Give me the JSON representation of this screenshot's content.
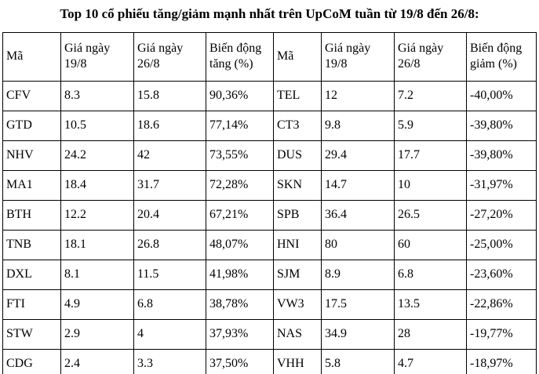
{
  "page": {
    "title": "Top 10 cổ phiếu tăng/giảm mạnh nhất trên UpCoM tuần từ 19/8 đến 26/8:"
  },
  "table": {
    "headers": [
      "Mã",
      "Giá ngày 19/8",
      "Giá ngày 26/8",
      "Biến động tăng (%)",
      "Mã",
      "Giá ngày 19/8",
      "Giá ngày 26/8",
      "Biến động giảm (%)"
    ],
    "gainers": [
      {
        "code": "CFV",
        "price_19_8": "8.3",
        "price_26_8": "15.8",
        "change": "90,36%"
      },
      {
        "code": "GTD",
        "price_19_8": "10.5",
        "price_26_8": "18.6",
        "change": "77,14%"
      },
      {
        "code": "NHV",
        "price_19_8": "24.2",
        "price_26_8": "42",
        "change": "73,55%"
      },
      {
        "code": "MA1",
        "price_19_8": "18.4",
        "price_26_8": "31.7",
        "change": "72,28%"
      },
      {
        "code": "BTH",
        "price_19_8": "12.2",
        "price_26_8": "20.4",
        "change": "67,21%"
      },
      {
        "code": "TNB",
        "price_19_8": "18.1",
        "price_26_8": "26.8",
        "change": "48,07%"
      },
      {
        "code": "DXL",
        "price_19_8": "8.1",
        "price_26_8": "11.5",
        "change": "41,98%"
      },
      {
        "code": "FTI",
        "price_19_8": "4.9",
        "price_26_8": "6.8",
        "change": "38,78%"
      },
      {
        "code": "STW",
        "price_19_8": "2.9",
        "price_26_8": "4",
        "change": "37,93%"
      },
      {
        "code": "CDG",
        "price_19_8": "2.4",
        "price_26_8": "3.3",
        "change": "37,50%"
      }
    ],
    "losers": [
      {
        "code": "TEL",
        "price_19_8": "12",
        "price_26_8": "7.2",
        "change": "-40,00%"
      },
      {
        "code": "CT3",
        "price_19_8": "9.8",
        "price_26_8": "5.9",
        "change": "-39,80%"
      },
      {
        "code": "DUS",
        "price_19_8": "29.4",
        "price_26_8": "17.7",
        "change": "-39,80%"
      },
      {
        "code": "SKN",
        "price_19_8": "14.7",
        "price_26_8": "10",
        "change": "-31,97%"
      },
      {
        "code": "SPB",
        "price_19_8": "36.4",
        "price_26_8": "26.5",
        "change": "-27,20%"
      },
      {
        "code": "HNI",
        "price_19_8": "80",
        "price_26_8": "60",
        "change": "-25,00%"
      },
      {
        "code": "SJM",
        "price_19_8": "8.9",
        "price_26_8": "6.8",
        "change": "-23,60%"
      },
      {
        "code": "VW3",
        "price_19_8": "17.5",
        "price_26_8": "13.5",
        "change": "-22,86%"
      },
      {
        "code": "NAS",
        "price_19_8": "34.9",
        "price_26_8": "28",
        "change": "-19,77%"
      },
      {
        "code": "VHH",
        "price_19_8": "5.8",
        "price_26_8": "4.7",
        "change": "-18,97%"
      }
    ]
  },
  "colors": {
    "text": "#000000",
    "border": "#000000",
    "background": "#ffffff"
  }
}
